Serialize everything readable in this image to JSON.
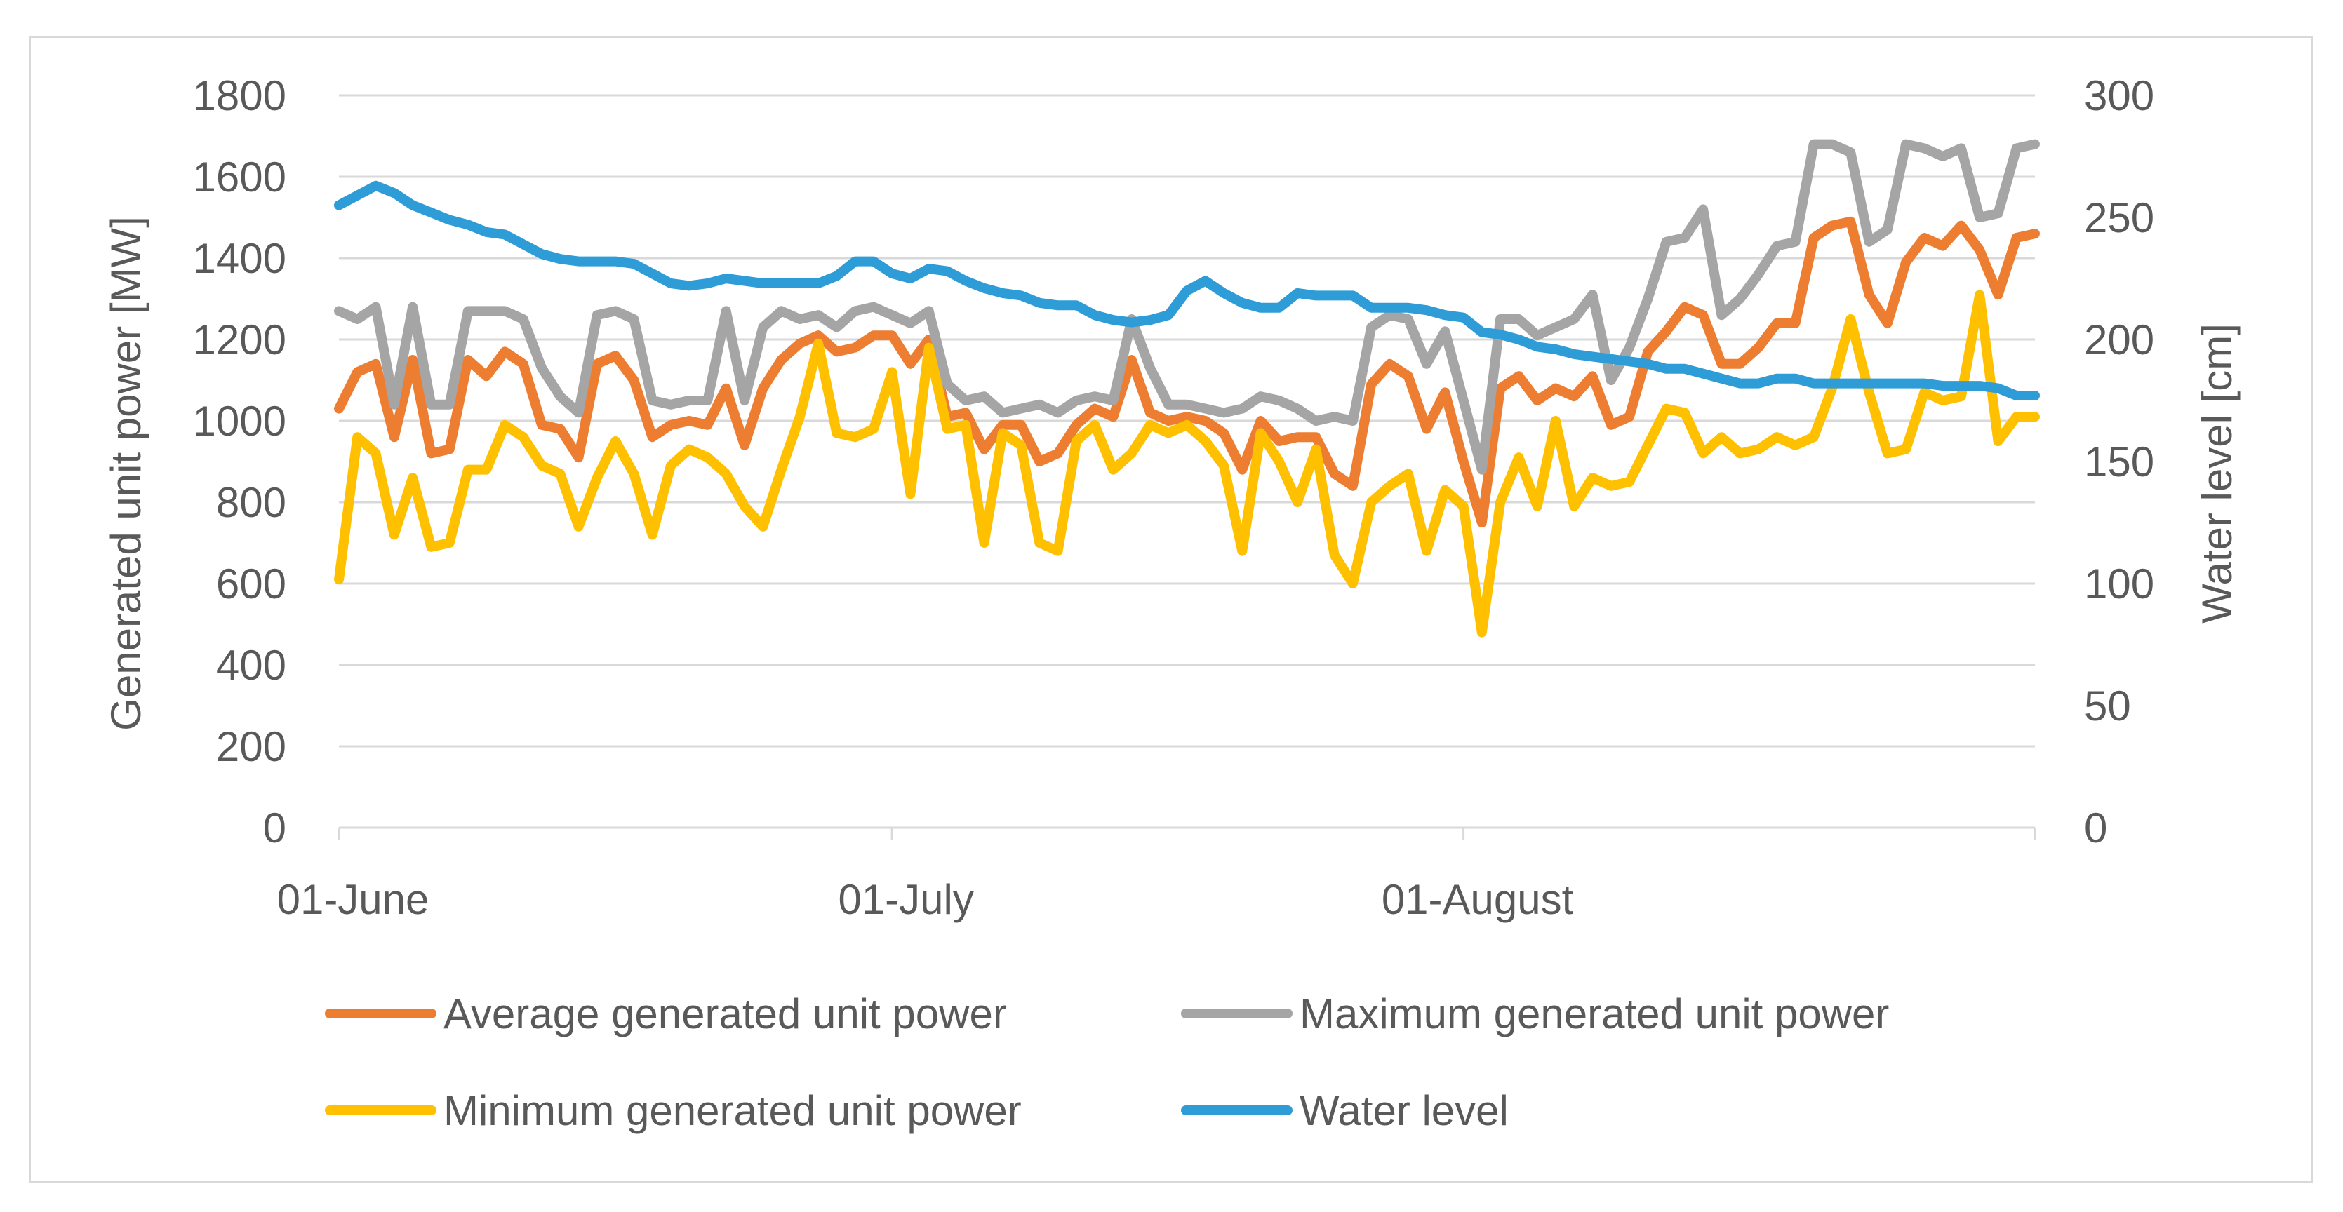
{
  "chart_data": {
    "type": "line",
    "title": "",
    "ylabel": "Generated unit power [MW]",
    "y2label": "Water level [cm]",
    "ylim": [
      0,
      1800
    ],
    "y2lim": [
      0,
      300
    ],
    "yticks": [
      "0",
      "200",
      "400",
      "600",
      "800",
      "1000",
      "1200",
      "1400",
      "1600",
      "1800"
    ],
    "y2ticks": [
      "0",
      "50",
      "100",
      "150",
      "200",
      "250",
      "300"
    ],
    "xticks": [
      {
        "label": "01-June",
        "day": 0
      },
      {
        "label": "01-July",
        "day": 30
      },
      {
        "label": "01-August",
        "day": 61
      }
    ],
    "x_days": [
      0,
      1,
      2,
      3,
      4,
      5,
      6,
      7,
      8,
      9,
      10,
      11,
      12,
      13,
      14,
      15,
      16,
      17,
      18,
      19,
      20,
      21,
      22,
      23,
      24,
      25,
      26,
      27,
      28,
      29,
      30,
      31,
      32,
      33,
      34,
      35,
      36,
      37,
      38,
      39,
      40,
      41,
      42,
      43,
      44,
      45,
      46,
      47,
      48,
      49,
      50,
      51,
      52,
      53,
      54,
      55,
      56,
      57,
      58,
      59,
      60,
      61,
      62,
      63,
      64,
      65,
      66,
      67,
      68,
      69,
      70,
      71,
      72,
      73,
      74,
      75,
      76,
      77,
      78,
      79,
      80,
      81,
      82,
      83,
      84,
      85,
      86,
      87,
      88,
      89,
      90,
      91,
      92
    ],
    "legend_position": "bottom",
    "grid": true,
    "series": [
      {
        "name": "Average generated unit power",
        "color": "#ed7d31",
        "axis": "left",
        "values": [
          1030,
          1120,
          1140,
          960,
          1150,
          920,
          930,
          1150,
          1110,
          1170,
          1140,
          990,
          980,
          910,
          1140,
          1160,
          1100,
          960,
          990,
          1000,
          990,
          1080,
          940,
          1080,
          1150,
          1190,
          1210,
          1170,
          1180,
          1210,
          1210,
          1140,
          1200,
          1010,
          1020,
          930,
          990,
          990,
          900,
          920,
          990,
          1030,
          1010,
          1150,
          1020,
          1000,
          1010,
          1000,
          970,
          880,
          1000,
          950,
          960,
          960,
          870,
          840,
          1090,
          1140,
          1110,
          980,
          1070,
          900,
          750,
          1080,
          1110,
          1050,
          1080,
          1060,
          1110,
          990,
          1010,
          1170,
          1220,
          1280,
          1260,
          1140,
          1140,
          1180,
          1240,
          1240,
          1450,
          1480,
          1490,
          1310,
          1240,
          1390,
          1450,
          1430,
          1480,
          1420,
          1310,
          1450,
          1460
        ]
      },
      {
        "name": "Maximum generated unit power",
        "color": "#a5a5a5",
        "axis": "left",
        "values": [
          1270,
          1250,
          1280,
          1040,
          1280,
          1040,
          1040,
          1270,
          1270,
          1270,
          1250,
          1130,
          1060,
          1020,
          1260,
          1270,
          1250,
          1050,
          1040,
          1050,
          1050,
          1270,
          1050,
          1230,
          1270,
          1250,
          1260,
          1230,
          1270,
          1280,
          1260,
          1240,
          1270,
          1090,
          1050,
          1060,
          1020,
          1030,
          1040,
          1020,
          1050,
          1060,
          1050,
          1250,
          1130,
          1040,
          1040,
          1030,
          1020,
          1030,
          1060,
          1050,
          1030,
          1000,
          1010,
          1000,
          1230,
          1260,
          1250,
          1140,
          1220,
          1050,
          880,
          1250,
          1250,
          1210,
          1230,
          1250,
          1310,
          1100,
          1180,
          1300,
          1440,
          1450,
          1520,
          1260,
          1300,
          1360,
          1430,
          1440,
          1680,
          1680,
          1660,
          1440,
          1470,
          1680,
          1670,
          1650,
          1670,
          1500,
          1510,
          1670,
          1680
        ]
      },
      {
        "name": "Minimum generated unit power",
        "color": "#ffc000",
        "axis": "left",
        "values": [
          610,
          960,
          920,
          720,
          860,
          690,
          700,
          880,
          880,
          990,
          960,
          890,
          870,
          740,
          860,
          950,
          870,
          720,
          890,
          930,
          910,
          870,
          790,
          740,
          880,
          1010,
          1190,
          970,
          960,
          980,
          1120,
          820,
          1180,
          980,
          990,
          700,
          970,
          940,
          700,
          680,
          950,
          990,
          880,
          920,
          990,
          970,
          990,
          950,
          890,
          680,
          970,
          900,
          800,
          930,
          670,
          600,
          800,
          840,
          870,
          680,
          830,
          790,
          480,
          800,
          910,
          790,
          1000,
          790,
          860,
          840,
          850,
          940,
          1030,
          1020,
          920,
          960,
          920,
          930,
          960,
          940,
          960,
          1080,
          1250,
          1070,
          920,
          930,
          1070,
          1050,
          1060,
          1310,
          950,
          1010,
          1010
        ]
      },
      {
        "name": "Water level",
        "color": "#2e9cd7",
        "axis": "right",
        "values": [
          255,
          259,
          263,
          260,
          255,
          252,
          249,
          247,
          244,
          243,
          239,
          235,
          233,
          232,
          232,
          232,
          231,
          227,
          223,
          222,
          223,
          225,
          224,
          223,
          223,
          223,
          223,
          226,
          232,
          232,
          227,
          225,
          229,
          228,
          224,
          221,
          219,
          218,
          215,
          214,
          214,
          210,
          208,
          207,
          208,
          210,
          220,
          224,
          219,
          215,
          213,
          213,
          219,
          218,
          218,
          218,
          213,
          213,
          213,
          212,
          210,
          209,
          203,
          202,
          200,
          197,
          196,
          194,
          193,
          192,
          191,
          190,
          188,
          188,
          186,
          184,
          182,
          182,
          184,
          184,
          182,
          182,
          182,
          182,
          182,
          182,
          182,
          181,
          181,
          181,
          180,
          177,
          177
        ]
      }
    ]
  }
}
